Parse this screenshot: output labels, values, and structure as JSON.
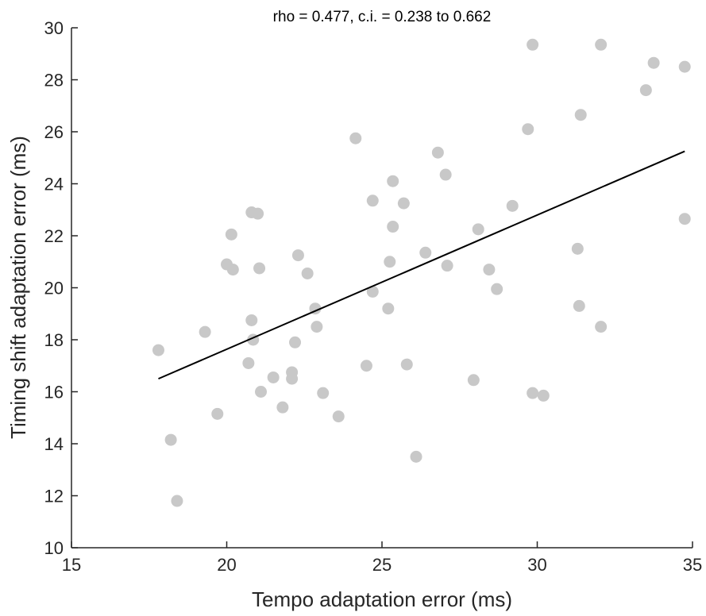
{
  "chart_data": {
    "type": "scatter",
    "title": "rho = 0.477, c.i. = 0.238 to 0.662",
    "xlabel": "Tempo adaptation error (ms)",
    "ylabel": "Timing shift adaptation error (ms)",
    "xlim": [
      15,
      35
    ],
    "ylim": [
      10,
      30
    ],
    "xticks": [
      "15",
      "20",
      "25",
      "30",
      "35"
    ],
    "yticks": [
      "10",
      "12",
      "14",
      "16",
      "18",
      "20",
      "22",
      "24",
      "26",
      "28",
      "30"
    ],
    "grid": false,
    "box": false,
    "colors": {
      "points": "#c8c8c8",
      "fit_line": "#000000",
      "axes": "#262626"
    },
    "points": [
      [
        17.8,
        17.6
      ],
      [
        18.2,
        14.15
      ],
      [
        18.4,
        11.8
      ],
      [
        19.3,
        18.3
      ],
      [
        19.7,
        15.15
      ],
      [
        20.0,
        20.9
      ],
      [
        20.15,
        22.05
      ],
      [
        20.2,
        20.7
      ],
      [
        20.7,
        17.1
      ],
      [
        20.8,
        18.75
      ],
      [
        20.8,
        22.9
      ],
      [
        20.85,
        18.0
      ],
      [
        21.0,
        22.85
      ],
      [
        21.05,
        20.75
      ],
      [
        21.1,
        16.0
      ],
      [
        21.5,
        16.55
      ],
      [
        21.8,
        15.4
      ],
      [
        22.1,
        16.75
      ],
      [
        22.1,
        16.5
      ],
      [
        22.2,
        17.9
      ],
      [
        22.3,
        21.25
      ],
      [
        22.6,
        20.55
      ],
      [
        22.85,
        19.2
      ],
      [
        22.9,
        18.5
      ],
      [
        23.1,
        15.95
      ],
      [
        23.6,
        15.05
      ],
      [
        24.15,
        25.75
      ],
      [
        24.5,
        17.0
      ],
      [
        24.7,
        23.35
      ],
      [
        24.7,
        19.85
      ],
      [
        25.2,
        19.2
      ],
      [
        25.25,
        21.0
      ],
      [
        25.35,
        22.35
      ],
      [
        25.35,
        24.1
      ],
      [
        25.7,
        23.25
      ],
      [
        25.8,
        17.05
      ],
      [
        26.1,
        13.5
      ],
      [
        26.4,
        21.35
      ],
      [
        26.8,
        25.2
      ],
      [
        27.05,
        24.35
      ],
      [
        27.1,
        20.85
      ],
      [
        27.95,
        16.45
      ],
      [
        28.1,
        22.25
      ],
      [
        28.45,
        20.7
      ],
      [
        28.7,
        19.95
      ],
      [
        29.2,
        23.15
      ],
      [
        29.7,
        26.1
      ],
      [
        29.85,
        15.95
      ],
      [
        29.85,
        29.35
      ],
      [
        30.2,
        15.85
      ],
      [
        31.3,
        21.5
      ],
      [
        31.35,
        19.3
      ],
      [
        31.4,
        26.65
      ],
      [
        32.05,
        18.5
      ],
      [
        32.05,
        29.35
      ],
      [
        33.5,
        27.6
      ],
      [
        33.75,
        28.65
      ],
      [
        34.75,
        28.5
      ],
      [
        34.75,
        22.65
      ]
    ],
    "fit_line": {
      "x": [
        17.8,
        34.75
      ],
      "y": [
        16.5,
        25.25
      ]
    }
  }
}
